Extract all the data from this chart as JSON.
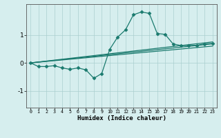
{
  "xlabel": "Humidex (Indice chaleur)",
  "bg_color": "#d6eeee",
  "grid_color": "#aacfcf",
  "line_color": "#1a7a6e",
  "xlim": [
    -0.5,
    23.5
  ],
  "ylim": [
    -1.6,
    2.1
  ],
  "yticks": [
    -1,
    0,
    1
  ],
  "xticks": [
    0,
    1,
    2,
    3,
    4,
    5,
    6,
    7,
    8,
    9,
    10,
    11,
    12,
    13,
    14,
    15,
    16,
    17,
    18,
    19,
    20,
    21,
    22,
    23
  ],
  "series": [
    {
      "x": [
        0,
        1,
        2,
        3,
        4,
        5,
        6,
        7,
        8,
        9,
        10,
        11,
        12,
        13,
        14,
        15,
        16,
        17,
        18,
        19,
        20,
        21,
        22,
        23
      ],
      "y": [
        0.0,
        -0.13,
        -0.13,
        -0.1,
        -0.18,
        -0.23,
        -0.18,
        -0.25,
        -0.55,
        -0.38,
        0.48,
        0.92,
        1.18,
        1.72,
        1.82,
        1.77,
        1.05,
        1.02,
        0.68,
        0.62,
        0.62,
        0.63,
        0.68,
        0.7
      ],
      "marker": "D",
      "markersize": 2.5,
      "linewidth": 0.9
    },
    {
      "x": [
        0,
        23
      ],
      "y": [
        0.0,
        0.75
      ],
      "marker": null,
      "linewidth": 0.9
    },
    {
      "x": [
        0,
        23
      ],
      "y": [
        0.0,
        0.68
      ],
      "marker": null,
      "linewidth": 0.9
    },
    {
      "x": [
        0,
        23
      ],
      "y": [
        0.0,
        0.6
      ],
      "marker": null,
      "linewidth": 0.9
    }
  ]
}
